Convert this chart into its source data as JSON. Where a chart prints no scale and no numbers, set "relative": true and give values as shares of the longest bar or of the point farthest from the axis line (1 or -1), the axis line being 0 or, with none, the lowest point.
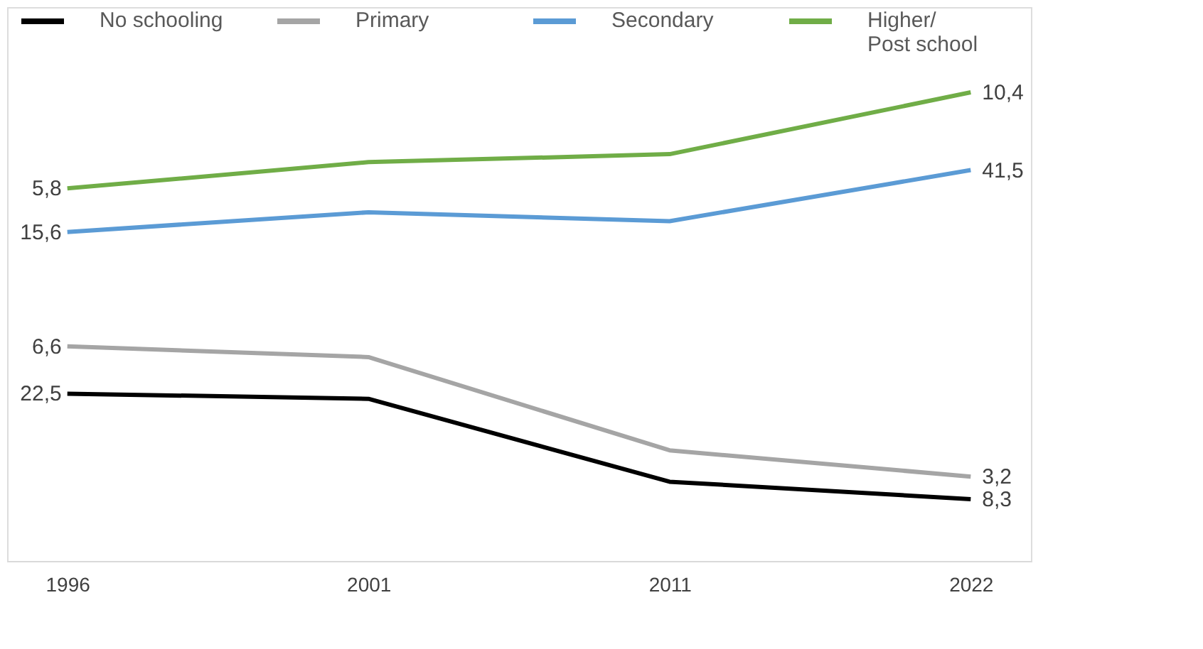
{
  "chart_data": {
    "type": "line",
    "relative": true,
    "categories": [
      "1996",
      "2001",
      "2011",
      "2022"
    ],
    "legend": "top",
    "grid": false,
    "marker": "none",
    "line_style": "solid",
    "series": [
      {
        "name": "No schooling",
        "color": "#000000",
        "values": [
          0.357,
          0.346,
          0.169,
          0.132
        ]
      },
      {
        "name": "Primary",
        "color": "#a5a5a5",
        "values": [
          0.458,
          0.435,
          0.236,
          0.18
        ]
      },
      {
        "name": "Secondary",
        "color": "#5b9bd5",
        "values": [
          0.702,
          0.744,
          0.725,
          0.834
        ]
      },
      {
        "name": "Higher/\nPost school",
        "color": "#70ad47",
        "values": [
          0.795,
          0.851,
          0.868,
          1.0
        ]
      }
    ],
    "annotations": [
      {
        "text": "22,5",
        "x": "1996",
        "y": 0.357
      },
      {
        "text": "6,6",
        "x": "1996",
        "y": 0.458
      },
      {
        "text": "15,6",
        "x": "1996",
        "y": 0.702
      },
      {
        "text": "5,8",
        "x": "1996",
        "y": 0.795
      },
      {
        "text": "8,3",
        "x": "2022",
        "y": 0.132
      },
      {
        "text": "3,2",
        "x": "2022",
        "y": 0.18
      },
      {
        "text": "41,5",
        "x": "2022",
        "y": 0.834
      },
      {
        "text": "10,4",
        "x": "2022",
        "y": 1.0
      }
    ]
  }
}
